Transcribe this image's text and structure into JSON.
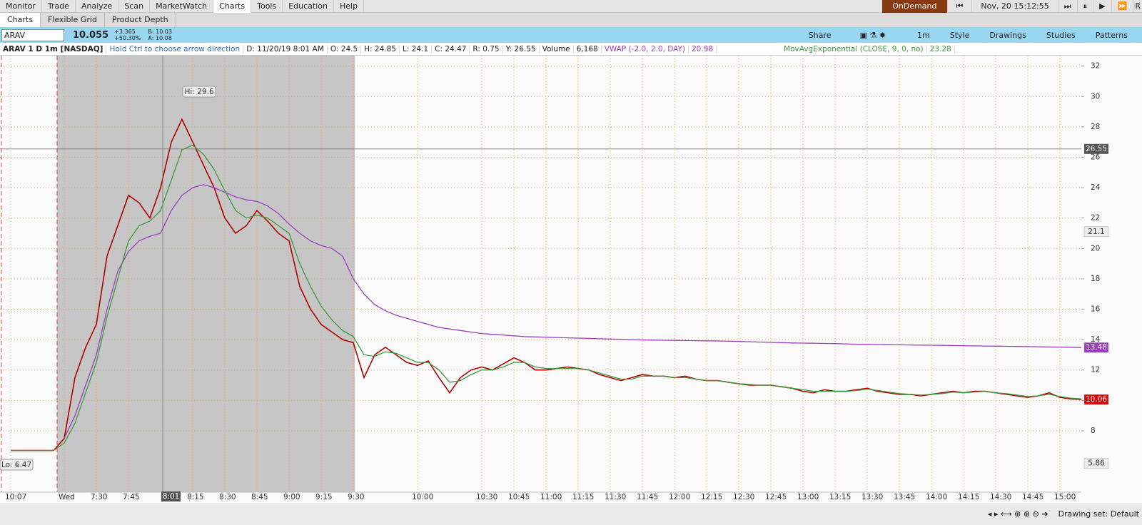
{
  "menu": [
    "Monitor",
    "Trade",
    "Analyze",
    "Scan",
    "MarketWatch",
    "Charts",
    "Tools",
    "Education",
    "Help"
  ],
  "top_right": {
    "ondemand": "OnDemand",
    "datetime": "Nov, 20 15:12:55",
    "cut": "R"
  },
  "tabs": [
    "Charts",
    "Flexible Grid",
    "Product Depth"
  ],
  "quote": {
    "symbol": "ARAV",
    "last": "10.055",
    "change": "+3.365",
    "change_pct": "+50.30%",
    "bid": "B: 10.03",
    "ask": "A: 10.08"
  },
  "toolbar": [
    "Share",
    "1m",
    "Style",
    "Drawings",
    "Studies",
    "Patterns"
  ],
  "info_bar": {
    "hint": "Hold Ctrl to choose arrow direction",
    "date": "D: 11/20/19 8:01 AM",
    "open": "O: 24.5",
    "high": "H: 24.85",
    "low": "L: 24.1",
    "close": "C: 24.47",
    "range": "R: 0.75",
    "y": "Y: 26.55",
    "volume_label": "Volume",
    "volume": "6,168",
    "vwap": "20.98",
    "ema": "23.28"
  },
  "status_bar": {
    "drawing_set": "Drawing set: Default"
  },
  "chart_data": {
    "type": "line",
    "categories": [
      "10:07",
      null,
      null,
      null,
      null,
      "Wed",
      null,
      null,
      "7:30",
      null,
      null,
      "7:45",
      null,
      null,
      null,
      null,
      null,
      "8:15",
      null,
      null,
      "8:30",
      null,
      null,
      "8:45",
      null,
      null,
      "9:00",
      null,
      null,
      "9:15",
      null,
      null,
      "9:30",
      null,
      null,
      null,
      null,
      null,
      "10:00",
      null,
      null,
      null,
      null,
      null,
      "10:30",
      null,
      null,
      "10:45",
      null,
      null,
      "11:00",
      null,
      null,
      "11:15",
      null,
      null,
      "11:30",
      null,
      null,
      "11:45",
      null,
      null,
      "12:00",
      null,
      null,
      "12:15",
      null,
      null,
      "12:30",
      null,
      null,
      "12:45",
      null,
      null,
      "13:00",
      null,
      null,
      "13:15",
      null,
      null,
      "13:30",
      null,
      null,
      "13:45",
      null,
      null,
      "14:00",
      null,
      null,
      "14:15",
      null,
      null,
      "14:30",
      null,
      null,
      "14:45",
      null,
      null,
      "15:00",
      null,
      null
    ],
    "series": [
      {
        "name": "ARAV 1 D 1m [NASDAQ]",
        "color": "#b00000",
        "values": [
          6.7,
          6.7,
          6.7,
          6.7,
          6.7,
          7.5,
          11.5,
          13.5,
          15.0,
          19.5,
          21.5,
          23.5,
          23.0,
          22.0,
          24.0,
          27.0,
          28.5,
          27.0,
          25.5,
          24.0,
          22.0,
          21.0,
          21.5,
          22.5,
          21.8,
          21.0,
          20.5,
          17.5,
          16.0,
          15.0,
          14.5,
          14.0,
          13.8,
          11.5,
          13.0,
          13.5,
          13.0,
          12.5,
          12.3,
          12.6,
          11.5,
          10.5,
          11.5,
          12.0,
          12.2,
          12.0,
          12.4,
          12.8,
          12.5,
          12.0,
          12.0,
          12.1,
          12.2,
          12.1,
          12.0,
          11.7,
          11.5,
          11.3,
          11.5,
          11.7,
          11.6,
          11.6,
          11.5,
          11.6,
          11.4,
          11.3,
          11.3,
          11.2,
          11.1,
          11.0,
          11.0,
          11.0,
          10.9,
          10.8,
          10.6,
          10.5,
          10.7,
          10.6,
          10.6,
          10.7,
          10.8,
          10.6,
          10.5,
          10.4,
          10.4,
          10.3,
          10.4,
          10.5,
          10.6,
          10.5,
          10.6,
          10.6,
          10.5,
          10.4,
          10.3,
          10.2,
          10.3,
          10.5,
          10.2,
          10.1,
          10.06
        ]
      },
      {
        "name": "VWAP (-2.0, 2.0, DAY)",
        "color": "#9a3fc0",
        "values": [
          null,
          null,
          null,
          null,
          null,
          7.5,
          9,
          11,
          13,
          16,
          18.5,
          19.8,
          20.5,
          20.8,
          21.0,
          22.5,
          23.5,
          24.0,
          24.2,
          24.0,
          23.7,
          23.4,
          23.2,
          23.1,
          22.8,
          22.3,
          21.6,
          21.0,
          20.5,
          20.2,
          20.0,
          19.5,
          18.0,
          17.0,
          16.3,
          15.9,
          15.6,
          15.4,
          15.2,
          15.0,
          14.8,
          14.7,
          14.6,
          14.5,
          14.4,
          14.35,
          14.3,
          14.25,
          14.2,
          14.18,
          14.16,
          14.14,
          14.12,
          14.1,
          14.08,
          14.06,
          14.04,
          14.02,
          14.0,
          13.98,
          13.97,
          13.96,
          13.95,
          13.94,
          13.93,
          13.92,
          13.91,
          13.9,
          13.88,
          13.86,
          13.84,
          13.82,
          13.8,
          13.78,
          13.77,
          13.76,
          13.75,
          13.74,
          13.72,
          13.7,
          13.69,
          13.68,
          13.67,
          13.66,
          13.65,
          13.64,
          13.63,
          13.62,
          13.61,
          13.6,
          13.59,
          13.58,
          13.57,
          13.56,
          13.55,
          13.54,
          13.53,
          13.52,
          13.51,
          13.5,
          13.48
        ]
      },
      {
        "name": "MovAvgExponential (CLOSE, 9, 0, no)",
        "color": "#3d9a3d",
        "values": [
          6.7,
          6.7,
          6.7,
          6.7,
          6.7,
          7.2,
          8.5,
          10.5,
          12.5,
          15.5,
          18.0,
          20.5,
          21.5,
          21.8,
          22.5,
          24.5,
          26.5,
          26.8,
          26.2,
          25.2,
          23.8,
          22.5,
          22.0,
          22.2,
          22.0,
          21.5,
          21.0,
          19.0,
          17.5,
          16.2,
          15.3,
          14.6,
          14.2,
          13.0,
          12.9,
          13.2,
          13.1,
          12.8,
          12.5,
          12.5,
          12.0,
          11.2,
          11.3,
          11.7,
          12.0,
          12.0,
          12.2,
          12.5,
          12.5,
          12.2,
          12.1,
          12.1,
          12.1,
          12.1,
          12.0,
          11.8,
          11.6,
          11.4,
          11.4,
          11.6,
          11.6,
          11.6,
          11.5,
          11.5,
          11.4,
          11.3,
          11.3,
          11.2,
          11.1,
          11.05,
          11.0,
          11.0,
          10.9,
          10.8,
          10.7,
          10.6,
          10.6,
          10.6,
          10.6,
          10.65,
          10.75,
          10.65,
          10.55,
          10.45,
          10.4,
          10.35,
          10.4,
          10.45,
          10.55,
          10.5,
          10.55,
          10.6,
          10.5,
          10.45,
          10.35,
          10.25,
          10.3,
          10.4,
          10.25,
          10.15,
          10.1
        ]
      }
    ],
    "ylim": [
      3.96,
      32.69
    ],
    "yticks": [
      8,
      10,
      12,
      14,
      16,
      18,
      20,
      22,
      24,
      26,
      28,
      30,
      32
    ],
    "grid": true,
    "markers": [
      {
        "value": 21.1,
        "color": "#ececec"
      },
      {
        "value": 13.48,
        "color": "#9a3fc0"
      },
      {
        "value": 10.06,
        "color": "#e00000"
      },
      {
        "value": 5.86,
        "color": "#ececec"
      }
    ],
    "crosshair": {
      "time": "8:01",
      "price": 26.55
    },
    "hi_label": "Hi: 29.6",
    "lo_label": "Lo: 6.47"
  }
}
